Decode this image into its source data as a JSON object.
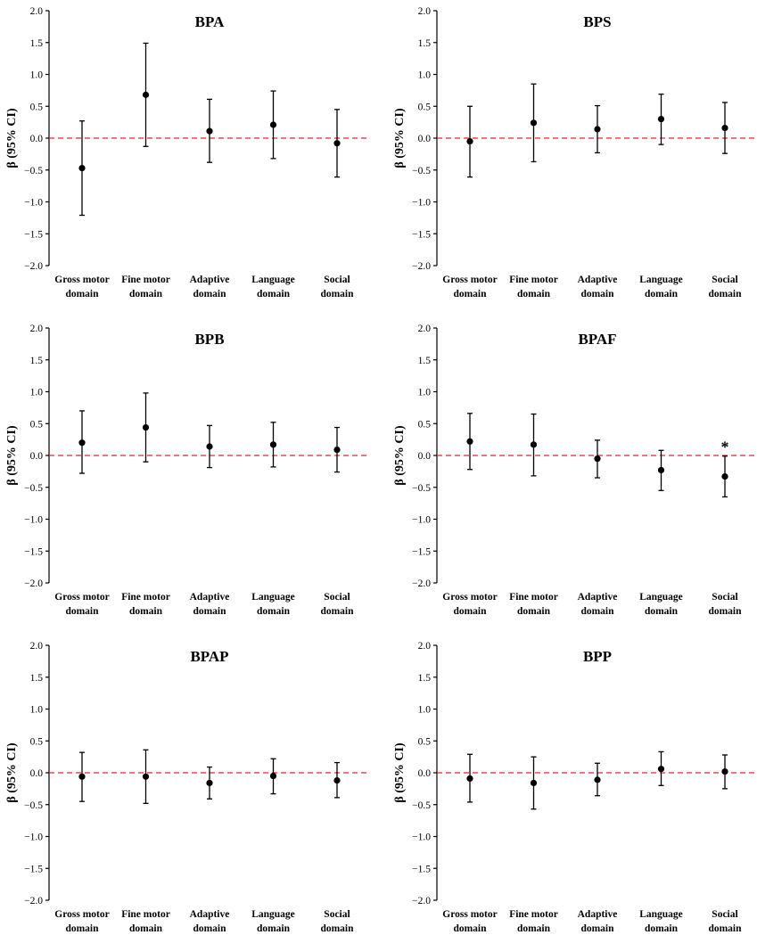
{
  "chart_data": [
    {
      "type": "errorbar",
      "title": "BPA",
      "ylabel": "β (95% CI)",
      "ylim": [
        -2.0,
        2.0
      ],
      "yticks": [
        "2.0",
        "1.5",
        "1.0",
        "0.5",
        "0.0",
        "−0.5",
        "−1.0",
        "−1.5",
        "−2.0"
      ],
      "categories": [
        [
          "Gross motor",
          "domain"
        ],
        [
          "Fine motor",
          "domain"
        ],
        [
          "Adaptive",
          "domain"
        ],
        [
          "Language",
          "domain"
        ],
        [
          "Social",
          "domain"
        ]
      ],
      "values": [
        -0.47,
        0.68,
        0.11,
        0.21,
        -0.08
      ],
      "ci_low": [
        -1.21,
        -0.13,
        -0.38,
        -0.32,
        -0.61
      ],
      "ci_high": [
        0.27,
        1.49,
        0.61,
        0.74,
        0.45
      ],
      "annotations": [
        "",
        "",
        "",
        "",
        ""
      ],
      "reference_line": {
        "y": 0.0,
        "color": "#e8242b",
        "style": "dashed"
      }
    },
    {
      "type": "errorbar",
      "title": "BPS",
      "ylabel": "β (95% CI)",
      "ylim": [
        -2.0,
        2.0
      ],
      "yticks": [
        "2.0",
        "1.5",
        "1.0",
        "0.5",
        "0.0",
        "−0.5",
        "−1.0",
        "−1.5",
        "−2.0"
      ],
      "categories": [
        [
          "Gross motor",
          "domain"
        ],
        [
          "Fine motor",
          "domain"
        ],
        [
          "Adaptive",
          "domain"
        ],
        [
          "Language",
          "domain"
        ],
        [
          "Social",
          "domain"
        ]
      ],
      "values": [
        -0.05,
        0.24,
        0.14,
        0.3,
        0.16
      ],
      "ci_low": [
        -0.61,
        -0.37,
        -0.23,
        -0.1,
        -0.24
      ],
      "ci_high": [
        0.5,
        0.85,
        0.51,
        0.69,
        0.56
      ],
      "annotations": [
        "",
        "",
        "",
        "",
        ""
      ],
      "reference_line": {
        "y": 0.0,
        "color": "#e8242b",
        "style": "dashed"
      }
    },
    {
      "type": "errorbar",
      "title": "BPB",
      "ylabel": "β (95% CI)",
      "ylim": [
        -2.0,
        2.0
      ],
      "yticks": [
        "2.0",
        "1.5",
        "1.0",
        "0.5",
        "0.0",
        "−0.5",
        "−1.0",
        "−1.5",
        "−2.0"
      ],
      "categories": [
        [
          "Gross motor",
          "domain"
        ],
        [
          "Fine motor",
          "domain"
        ],
        [
          "Adaptive",
          "domain"
        ],
        [
          "Language",
          "domain"
        ],
        [
          "Social",
          "domain"
        ]
      ],
      "values": [
        0.2,
        0.44,
        0.14,
        0.17,
        0.09
      ],
      "ci_low": [
        -0.28,
        -0.1,
        -0.19,
        -0.18,
        -0.26
      ],
      "ci_high": [
        0.7,
        0.98,
        0.47,
        0.52,
        0.44
      ],
      "annotations": [
        "",
        "",
        "",
        "",
        ""
      ],
      "reference_line": {
        "y": 0.0,
        "color": "#e8242b",
        "style": "dashed"
      }
    },
    {
      "type": "errorbar",
      "title": "BPAF",
      "ylabel": "β (95% CI)",
      "ylim": [
        -2.0,
        2.0
      ],
      "yticks": [
        "2.0",
        "1.5",
        "1.0",
        "0.5",
        "0.0",
        "−0.5",
        "−1.0",
        "−1.5",
        "−2.0"
      ],
      "categories": [
        [
          "Gross motor",
          "domain"
        ],
        [
          "Fine motor",
          "domain"
        ],
        [
          "Adaptive",
          "domain"
        ],
        [
          "Language",
          "domain"
        ],
        [
          "Social",
          "domain"
        ]
      ],
      "values": [
        0.22,
        0.17,
        -0.05,
        -0.23,
        -0.33
      ],
      "ci_low": [
        -0.22,
        -0.32,
        -0.35,
        -0.55,
        -0.65
      ],
      "ci_high": [
        0.66,
        0.65,
        0.24,
        0.08,
        -0.01
      ],
      "annotations": [
        "",
        "",
        "",
        "",
        "*"
      ],
      "reference_line": {
        "y": 0.0,
        "color": "#e8242b",
        "style": "dashed"
      }
    },
    {
      "type": "errorbar",
      "title": "BPAP",
      "ylabel": "β (95% CI)",
      "ylim": [
        -2.0,
        2.0
      ],
      "yticks": [
        "2.0",
        "1.5",
        "1.0",
        "0.5",
        "0.0",
        "−0.5",
        "−1.0",
        "−1.5",
        "−2.0"
      ],
      "categories": [
        [
          "Gross motor",
          "domain"
        ],
        [
          "Fine motor",
          "domain"
        ],
        [
          "Adaptive",
          "domain"
        ],
        [
          "Language",
          "domain"
        ],
        [
          "Social",
          "domain"
        ]
      ],
      "values": [
        -0.06,
        -0.06,
        -0.16,
        -0.05,
        -0.12
      ],
      "ci_low": [
        -0.45,
        -0.48,
        -0.41,
        -0.33,
        -0.39
      ],
      "ci_high": [
        0.32,
        0.36,
        0.09,
        0.22,
        0.16
      ],
      "annotations": [
        "",
        "",
        "",
        "",
        ""
      ],
      "reference_line": {
        "y": 0.0,
        "color": "#e8242b",
        "style": "dashed"
      }
    },
    {
      "type": "errorbar",
      "title": "BPP",
      "ylabel": "β (95% CI)",
      "ylim": [
        -2.0,
        2.0
      ],
      "yticks": [
        "2.0",
        "1.5",
        "1.0",
        "0.5",
        "0.0",
        "−0.5",
        "−1.0",
        "−1.5",
        "−2.0"
      ],
      "categories": [
        [
          "Gross motor",
          "domain"
        ],
        [
          "Fine motor",
          "domain"
        ],
        [
          "Adaptive",
          "domain"
        ],
        [
          "Language",
          "domain"
        ],
        [
          "Social",
          "domain"
        ]
      ],
      "values": [
        -0.09,
        -0.16,
        -0.11,
        0.06,
        0.02
      ],
      "ci_low": [
        -0.46,
        -0.57,
        -0.36,
        -0.2,
        -0.25
      ],
      "ci_high": [
        0.29,
        0.25,
        0.15,
        0.33,
        0.28
      ],
      "annotations": [
        "",
        "",
        "",
        "",
        ""
      ],
      "reference_line": {
        "y": 0.0,
        "color": "#e8242b",
        "style": "dashed"
      }
    }
  ]
}
